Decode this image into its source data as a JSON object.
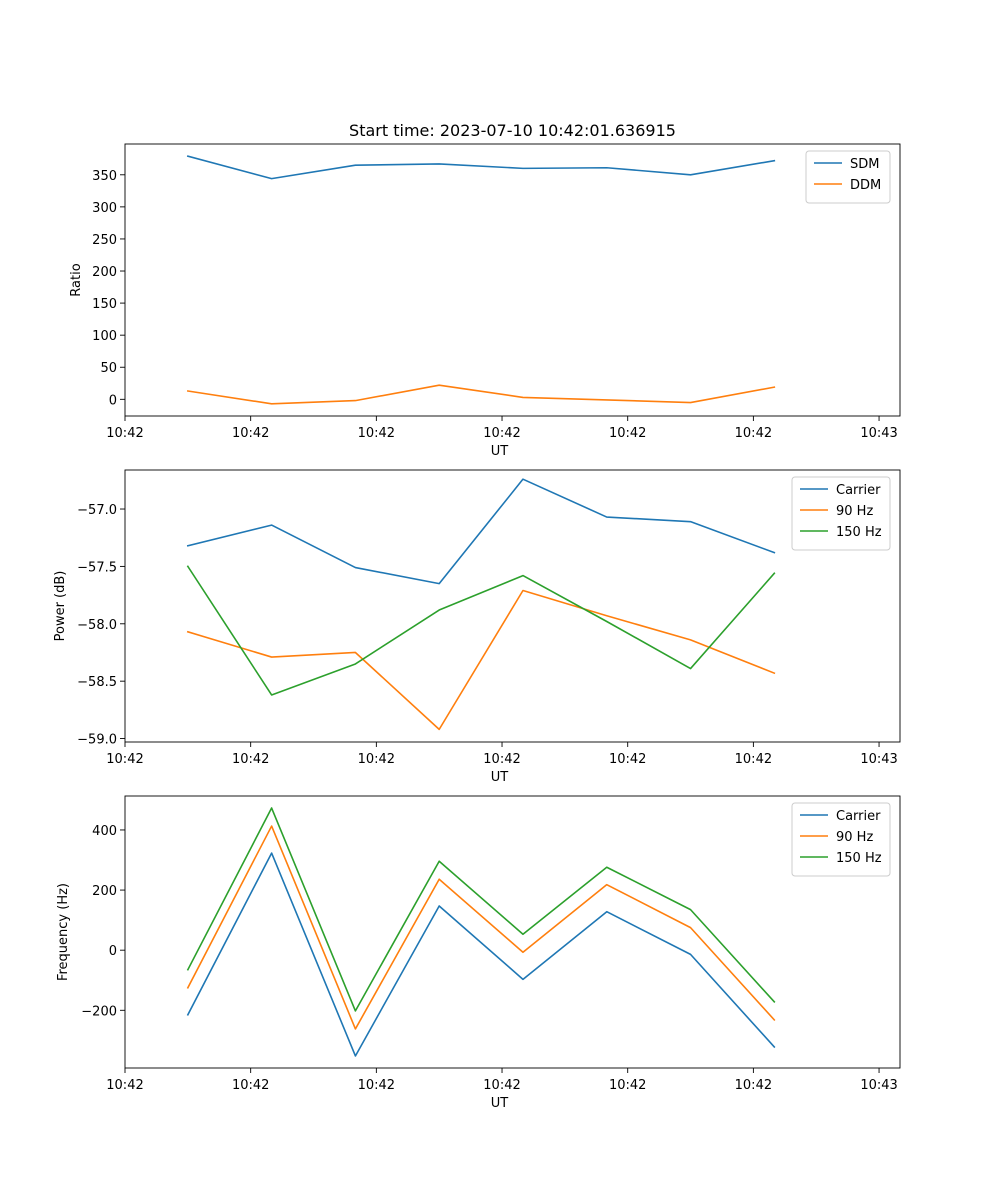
{
  "figure": {
    "title": "Start time: 2023-07-10 10:42:01.636915"
  },
  "chart_data": [
    {
      "type": "line",
      "title": "Start time: 2023-07-10 10:42:01.636915",
      "xlabel": "UT",
      "ylabel": "Ratio",
      "xlim": [
        -0.75,
        8.5
      ],
      "ylim": [
        -26,
        398
      ],
      "xticks": [
        -0.75,
        0.75,
        2.25,
        3.75,
        5.25,
        6.75,
        8.25
      ],
      "xtick_labels": [
        "10:42",
        "10:42",
        "10:42",
        "10:42",
        "10:42",
        "10:42",
        "10:43"
      ],
      "yticks": [
        0,
        50,
        100,
        150,
        200,
        250,
        300,
        350
      ],
      "ytick_labels": [
        "0",
        "50",
        "100",
        "150",
        "200",
        "250",
        "300",
        "350"
      ],
      "x": [
        0,
        1,
        2,
        3,
        4,
        5,
        6,
        7
      ],
      "legend": "upper right",
      "series": [
        {
          "name": "SDM",
          "color": "#1f77b4",
          "values": [
            379,
            344,
            365,
            367,
            360,
            361,
            350,
            372
          ]
        },
        {
          "name": "DDM",
          "color": "#ff7f0e",
          "values": [
            13,
            -7,
            -2,
            22,
            3,
            -1,
            -5,
            19
          ]
        }
      ]
    },
    {
      "type": "line",
      "title": "",
      "xlabel": "UT",
      "ylabel": "Power (dB)",
      "xlim": [
        -0.75,
        8.5
      ],
      "ylim": [
        -59.03,
        -56.66
      ],
      "xticks": [
        -0.75,
        0.75,
        2.25,
        3.75,
        5.25,
        6.75,
        8.25
      ],
      "xtick_labels": [
        "10:42",
        "10:42",
        "10:42",
        "10:42",
        "10:42",
        "10:42",
        "10:43"
      ],
      "yticks": [
        -59.0,
        -58.5,
        -58.0,
        -57.5,
        -57.0
      ],
      "ytick_labels": [
        "−59.0",
        "−58.5",
        "−58.0",
        "−57.5",
        "−57.0"
      ],
      "x": [
        0,
        1,
        2,
        3,
        4,
        5,
        6,
        7
      ],
      "legend": "upper right",
      "series": [
        {
          "name": "Carrier",
          "color": "#1f77b4",
          "values": [
            -57.32,
            -57.14,
            -57.51,
            -57.65,
            -56.74,
            -57.07,
            -57.11,
            -57.38
          ]
        },
        {
          "name": "90 Hz",
          "color": "#ff7f0e",
          "values": [
            -58.07,
            -58.29,
            -58.25,
            -58.92,
            -57.71,
            -57.93,
            -58.14,
            -58.43
          ]
        },
        {
          "name": "150 Hz",
          "color": "#2ca02c",
          "values": [
            -57.5,
            -58.62,
            -58.35,
            -57.88,
            -57.58,
            -57.98,
            -58.39,
            -57.56
          ]
        }
      ]
    },
    {
      "type": "line",
      "title": "",
      "xlabel": "UT",
      "ylabel": "Frequency (Hz)",
      "xlim": [
        -0.75,
        8.5
      ],
      "ylim": [
        -392,
        513
      ],
      "xticks": [
        -0.75,
        0.75,
        2.25,
        3.75,
        5.25,
        6.75,
        8.25
      ],
      "xtick_labels": [
        "10:42",
        "10:42",
        "10:42",
        "10:42",
        "10:42",
        "10:42",
        "10:43"
      ],
      "yticks": [
        -200,
        0,
        200,
        400
      ],
      "ytick_labels": [
        "−200",
        "0",
        "200",
        "400"
      ],
      "x": [
        0,
        1,
        2,
        3,
        4,
        5,
        6,
        7
      ],
      "legend": "upper right",
      "series": [
        {
          "name": "Carrier",
          "color": "#1f77b4",
          "values": [
            -215,
            323,
            -352,
            147,
            -97,
            128,
            -14,
            -322
          ]
        },
        {
          "name": "90 Hz",
          "color": "#ff7f0e",
          "values": [
            -125,
            413,
            -262,
            236,
            -7,
            218,
            75,
            -232
          ]
        },
        {
          "name": "150 Hz",
          "color": "#2ca02c",
          "values": [
            -65,
            473,
            -202,
            296,
            53,
            276,
            135,
            -172
          ]
        }
      ]
    }
  ]
}
